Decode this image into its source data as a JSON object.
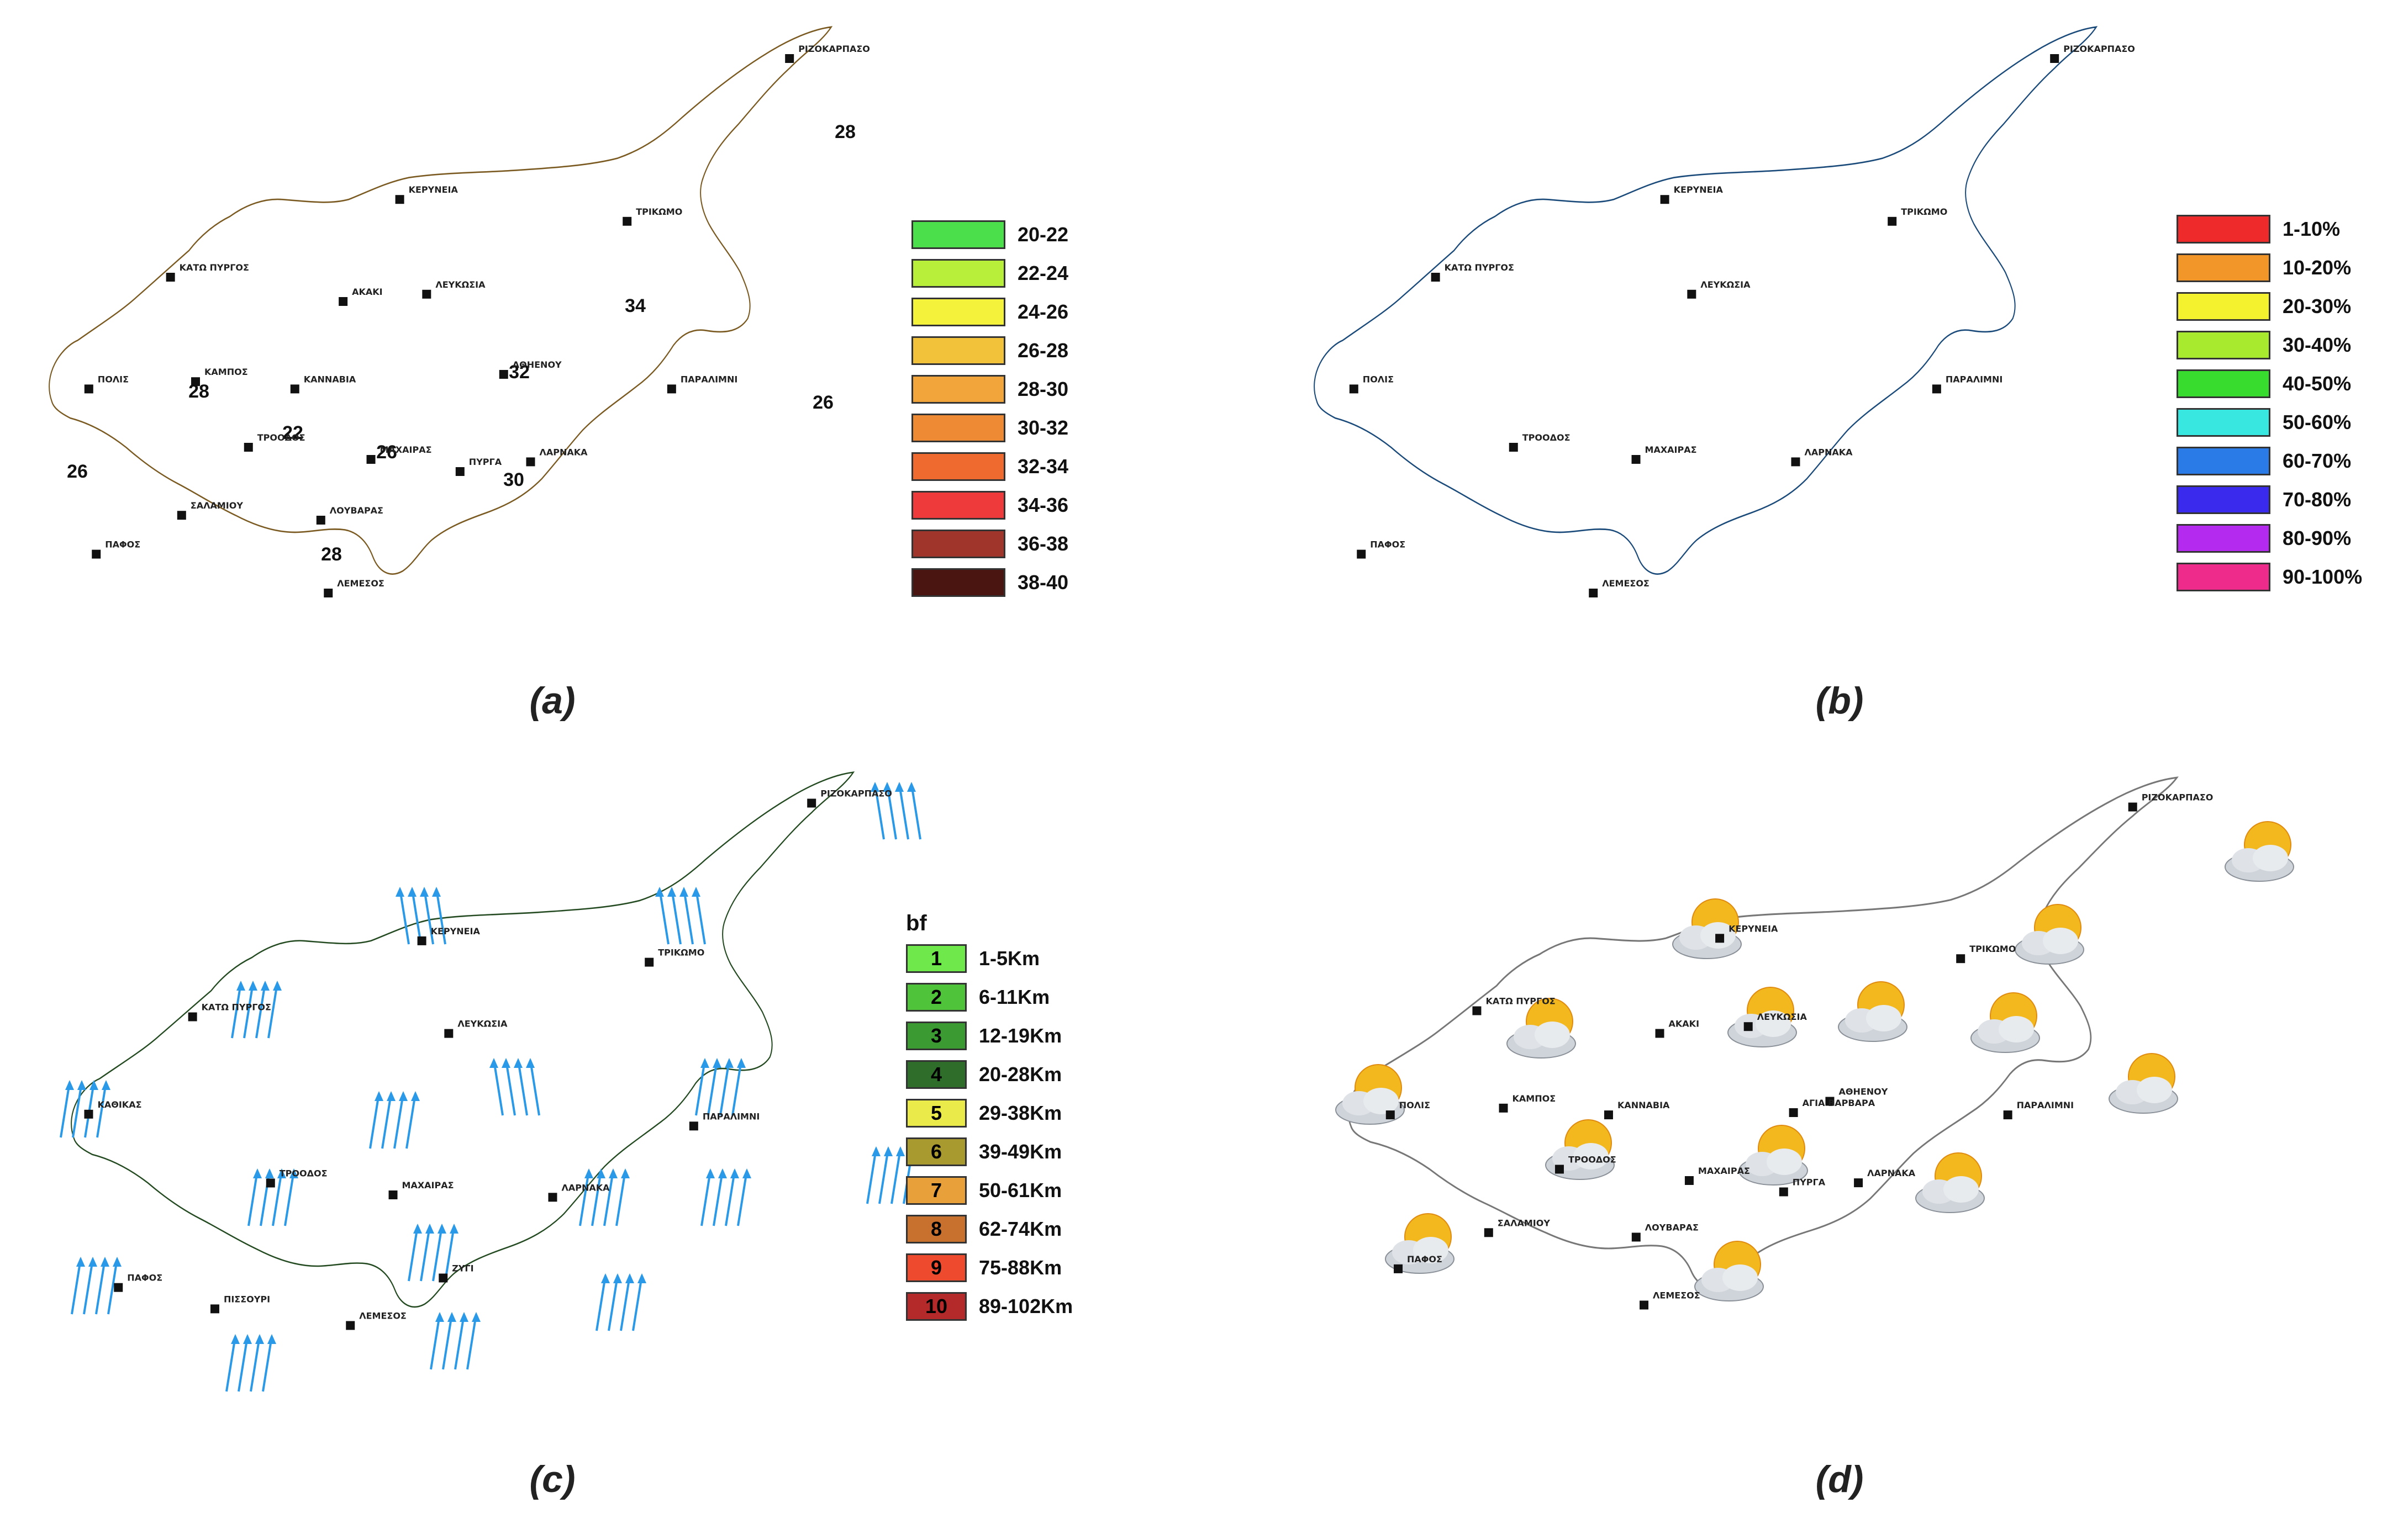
{
  "panels": [
    {
      "id": "a",
      "caption": "(a)",
      "legend": [
        {
          "label": "20-22",
          "color": "#4be04b"
        },
        {
          "label": "22-24",
          "color": "#b8ef3a"
        },
        {
          "label": "24-26",
          "color": "#f4f23a"
        },
        {
          "label": "26-28",
          "color": "#f2c33a"
        },
        {
          "label": "28-30",
          "color": "#f2a53a"
        },
        {
          "label": "30-32",
          "color": "#ef8a34"
        },
        {
          "label": "32-34",
          "color": "#ee6a2e"
        },
        {
          "label": "34-36",
          "color": "#ee3a3a"
        },
        {
          "label": "36-38",
          "color": "#a0352b"
        },
        {
          "label": "38-40",
          "color": "#4a1410"
        }
      ],
      "isolines": [
        "28",
        "34",
        "32",
        "28",
        "22",
        "26",
        "26",
        "30",
        "26",
        "28"
      ],
      "towns": [
        "ΡΙΖΟΚΑΡΠΑΣΟ",
        "ΚΕΡΥΝΕΙΑ",
        "ΤΡΙΚΩΜΟ",
        "ΚΑΤΩ ΠΥΡΓΟΣ",
        "ΑΚΑΚΙ",
        "ΛΕΥΚΩΣΙΑ",
        "ΑΘΗΕΝΟΥ",
        "ΠΟΛΙΣ",
        "ΚΑΜΠΟΣ",
        "ΚΑΝΝΑΒΙΑ",
        "ΠΑΡΑΛΙΜΝΙ",
        "ΤΡΟΟΔΟΣ",
        "ΜΑΧΑΙΡΑΣ",
        "ΠΥΡΓΑ",
        "ΛΑΡΝΑΚΑ",
        "ΣΑΛΑΜΙΟΥ",
        "ΛΟΥΒΑΡΑΣ",
        "ΠΑΦΟΣ",
        "ΛΕΜΕΣΟΣ"
      ]
    },
    {
      "id": "b",
      "caption": "(b)",
      "legend": [
        {
          "label": "1-10%",
          "color": "#ee2a2a"
        },
        {
          "label": "10-20%",
          "color": "#f2962a"
        },
        {
          "label": "20-30%",
          "color": "#f4f22e"
        },
        {
          "label": "30-40%",
          "color": "#a8ea2e"
        },
        {
          "label": "40-50%",
          "color": "#38dc2e"
        },
        {
          "label": "50-60%",
          "color": "#38e8e0"
        },
        {
          "label": "60-70%",
          "color": "#2a7ae8"
        },
        {
          "label": "70-80%",
          "color": "#3a2aee"
        },
        {
          "label": "80-90%",
          "color": "#b42aee"
        },
        {
          "label": "90-100%",
          "color": "#ee2a8a"
        }
      ],
      "towns": [
        "ΡΙΖΟΚΑΡΠΑΣΟ",
        "ΚΕΡΥΝΕΙΑ",
        "ΤΡΙΚΩΜΟ",
        "ΚΑΤΩ ΠΥΡΓΟΣ",
        "ΛΕΥΚΩΣΙΑ",
        "ΠΟΛΙΣ",
        "ΠΑΡΑΛΙΜΝΙ",
        "ΤΡΟΟΔΟΣ",
        "ΜΑΧΑΙΡΑΣ",
        "ΛΑΡΝΑΚΑ",
        "ΠΑΦΟΣ",
        "ΛΕΜΕΣΟΣ"
      ]
    },
    {
      "id": "c",
      "caption": "(c)",
      "legend_title": "bf",
      "legend": [
        {
          "num": "1",
          "label": "1-5Km",
          "color": "#6ee84a"
        },
        {
          "num": "2",
          "label": "6-11Km",
          "color": "#4fc43a"
        },
        {
          "num": "3",
          "label": "12-19Km",
          "color": "#3c9a32"
        },
        {
          "num": "4",
          "label": "20-28Km",
          "color": "#2e6e2a"
        },
        {
          "num": "5",
          "label": "29-38Km",
          "color": "#eaea4a"
        },
        {
          "num": "6",
          "label": "39-49Km",
          "color": "#a89a2e"
        },
        {
          "num": "7",
          "label": "50-61Km",
          "color": "#e8a03a"
        },
        {
          "num": "8",
          "label": "62-74Km",
          "color": "#c8702e"
        },
        {
          "num": "9",
          "label": "75-88Km",
          "color": "#ee4a2e"
        },
        {
          "num": "10",
          "label": "89-102Km",
          "color": "#b42a2a"
        }
      ],
      "towns": [
        "ΡΙΖΟΚΑΡΠΑΣΟ",
        "ΚΕΡΥΝΕΙΑ",
        "ΤΡΙΚΩΜΟ",
        "ΚΑΤΩ ΠΥΡΓΟΣ",
        "ΛΕΥΚΩΣΙΑ",
        "ΚΑΘΙΚΑΣ",
        "ΠΑΡΑΛΙΜΝΙ",
        "ΤΡΟΟΔΟΣ",
        "ΜΑΧΑΙΡΑΣ",
        "ΛΑΡΝΑΚΑ",
        "ΠΑΦΟΣ",
        "ΖΥΓΙ",
        "ΛΕΜΕΣΟΣ",
        "ΠΙΣΣΟΥΡΙ"
      ]
    },
    {
      "id": "d",
      "caption": "(d)",
      "icon": "partly-cloudy-icon",
      "towns": [
        "ΡΙΖΟΚΑΡΠΑΣΟ",
        "ΚΕΡΥΝΕΙΑ",
        "ΤΡΙΚΩΜΟ",
        "ΚΑΤΩ ΠΥΡΓΟΣ",
        "ΑΚΑΚΙ",
        "ΛΕΥΚΩΣΙΑ",
        "ΑΘΗΕΝΟΥ",
        "ΠΟΛΙΣ",
        "ΚΑΜΠΟΣ",
        "ΚΑΝΝΑΒΙΑ",
        "ΑΓΙΑ ΒΑΡΒΑΡΑ",
        "ΠΑΡΑΛΙΜΝΙ",
        "ΤΡΟΟΔΟΣ",
        "ΜΑΧΑΙΡΑΣ",
        "ΠΥΡΓΑ",
        "ΛΑΡΝΑΚΑ",
        "ΣΑΛΑΜΙΟΥ",
        "ΛΟΥΒΑΡΑΣ",
        "ΠΑΦΟΣ",
        "ΛΕΜΕΣΟΣ"
      ]
    }
  ]
}
